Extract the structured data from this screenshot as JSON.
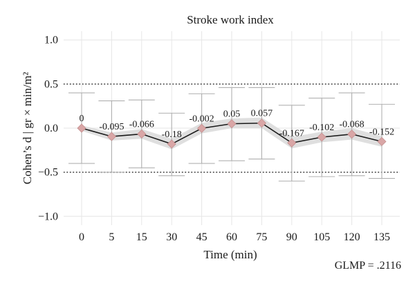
{
  "chart_data": {
    "type": "line",
    "title": "Stroke work index",
    "xlabel": "Time (min)",
    "ylabel": "Cohen’s d | gr × min/m²",
    "categories": [
      "0",
      "5",
      "15",
      "30",
      "45",
      "60",
      "75",
      "90",
      "105",
      "120",
      "135"
    ],
    "values": [
      0,
      -0.095,
      -0.066,
      -0.18,
      -0.002,
      0.05,
      0.057,
      -0.167,
      -0.102,
      -0.068,
      -0.152
    ],
    "value_labels": [
      "0",
      "-0.095",
      "-0.066",
      "-0.18",
      "-0.002",
      "0.05",
      "0.057",
      "-0.167",
      "-0.102",
      "-0.068",
      "-0.152"
    ],
    "error_upper": [
      0.4,
      0.31,
      0.32,
      0.17,
      0.39,
      0.46,
      0.46,
      0.26,
      0.34,
      0.4,
      0.27
    ],
    "error_lower": [
      -0.4,
      -0.5,
      -0.45,
      -0.54,
      -0.4,
      -0.37,
      -0.35,
      -0.6,
      -0.55,
      -0.54,
      -0.57
    ],
    "band_upper": [
      0.03,
      -0.05,
      -0.01,
      -0.12,
      0.06,
      0.11,
      0.12,
      -0.1,
      -0.04,
      0.0,
      -0.09
    ],
    "band_lower": [
      -0.03,
      -0.14,
      -0.12,
      -0.24,
      -0.06,
      0.0,
      0.0,
      -0.23,
      -0.16,
      -0.13,
      -0.21
    ],
    "ylim": [
      -1.1,
      1.1
    ],
    "yticks": [
      "1.0",
      "0.5",
      "0.0",
      "−0.5",
      "−1.0"
    ],
    "ytick_values": [
      1.0,
      0.5,
      0.0,
      -0.5,
      -1.0
    ],
    "reference_lines": [
      0.5,
      -0.5
    ],
    "grid": true,
    "colors": {
      "line": "#1a1a1a",
      "marker": "#d9a6a6",
      "band": "#d9d9d9",
      "error": "#b0b0b0",
      "grid": "#e6e6e6"
    }
  },
  "annotation": "GLMP = .2116"
}
